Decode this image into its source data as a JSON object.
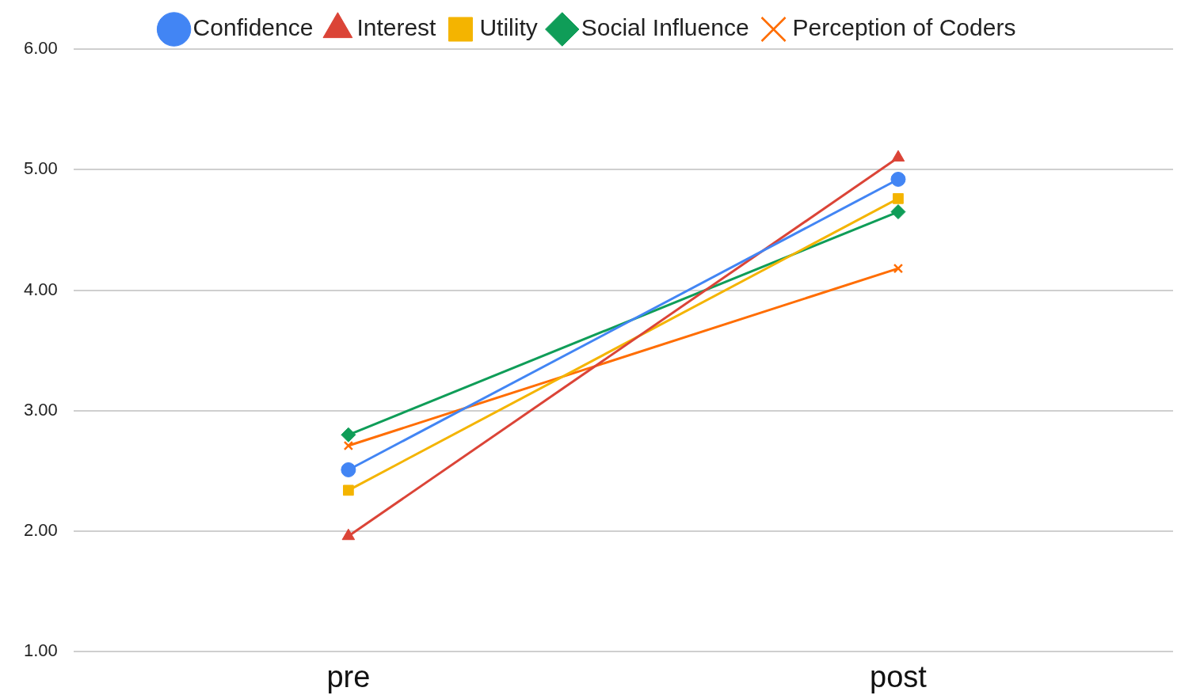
{
  "chart_data": {
    "type": "line",
    "categories": [
      "pre",
      "post"
    ],
    "series": [
      {
        "name": "Confidence",
        "color": "#4285f4",
        "marker": "circle",
        "values": [
          2.51,
          4.92
        ]
      },
      {
        "name": "Interest",
        "color": "#db4437",
        "marker": "triangle",
        "values": [
          1.96,
          5.1
        ]
      },
      {
        "name": "Utility",
        "color": "#f4b400",
        "marker": "square",
        "values": [
          2.34,
          4.76
        ]
      },
      {
        "name": "Social Influence",
        "color": "#0f9d58",
        "marker": "diamond",
        "values": [
          2.8,
          4.65
        ]
      },
      {
        "name": "Perception of Coders",
        "color": "#ff6d01",
        "marker": "cross",
        "values": [
          2.71,
          4.18
        ]
      }
    ],
    "ylim": [
      1,
      6
    ],
    "yticks": [
      {
        "value": 1,
        "label": "1.00"
      },
      {
        "value": 2,
        "label": "2.00"
      },
      {
        "value": 3,
        "label": "3.00"
      },
      {
        "value": 4,
        "label": "4.00"
      },
      {
        "value": 5,
        "label": "5.00"
      },
      {
        "value": 6,
        "label": "6.00"
      }
    ],
    "grid": "y",
    "legend": "top",
    "line_style": "solid"
  }
}
